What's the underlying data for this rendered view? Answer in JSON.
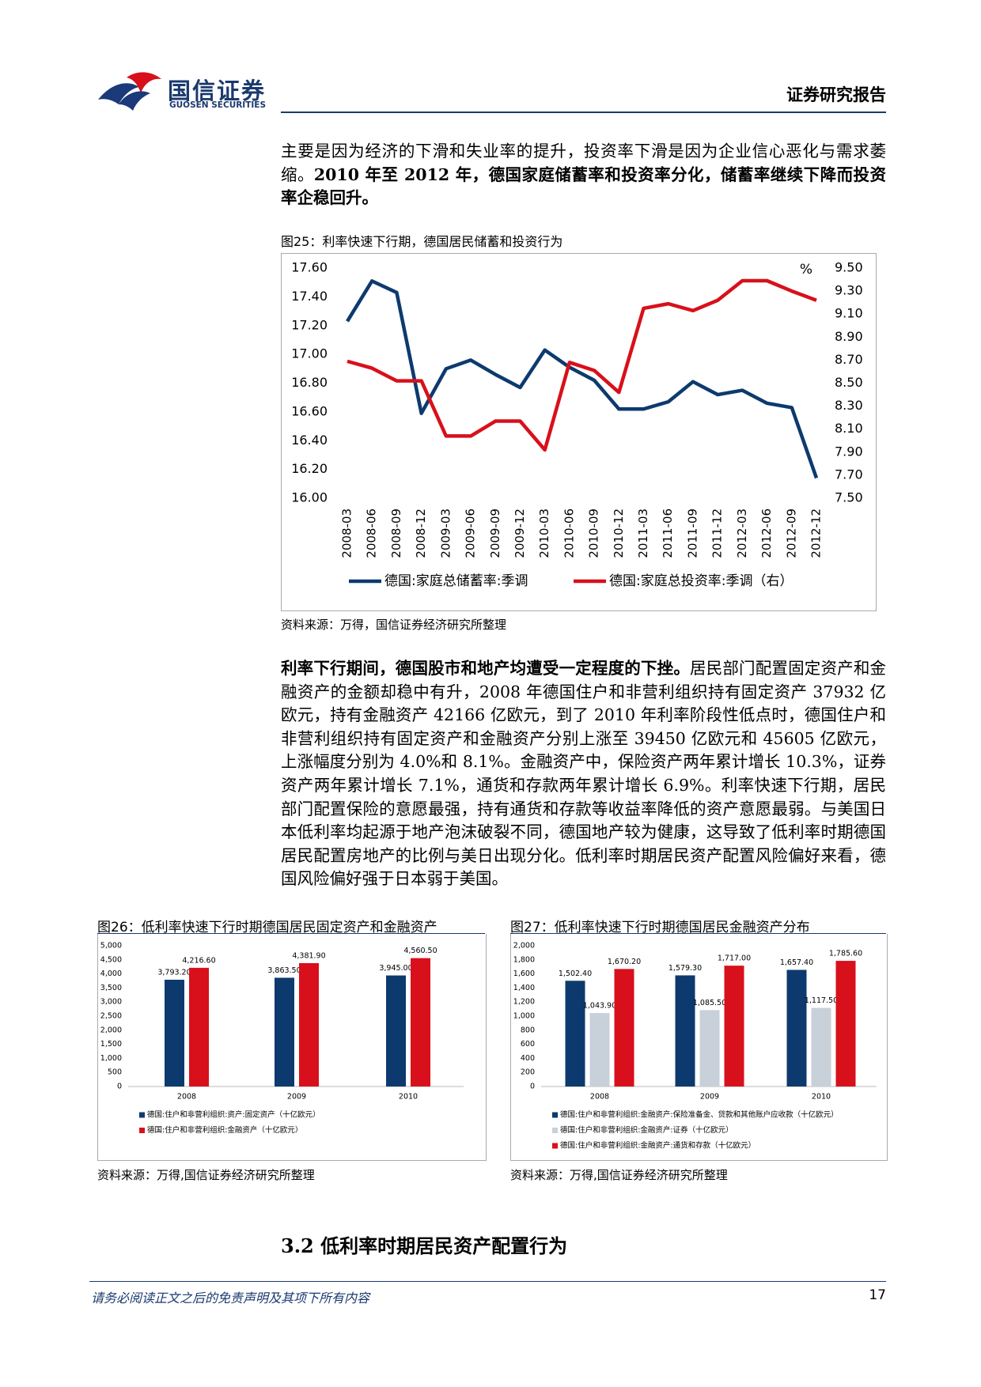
{
  "header": {
    "logo_cn": "国信证券",
    "logo_en": "GUOSEN SECURITIES",
    "report_type": "证券研究报告"
  },
  "paragraphs": [
    {
      "runs": [
        {
          "text": "主要是因为经济的下滑和失业率的提升，投资率下滑是因为企业信心恶化与需求萎缩。",
          "bold": false
        },
        {
          "text": "2010 年至 2012 年，德国家庭储蓄率和投资率分化，储蓄率继续下降而投资率企稳回升。",
          "bold": true
        }
      ]
    },
    {
      "runs": [
        {
          "text": "利率下行期间，德国股市和地产均遭受一定程度的下挫。",
          "bold": true
        },
        {
          "text": "居民部门配置固定资产和金融资产的金额却稳中有升，2008 年德国住户和非营利组织持有固定资产 37932 亿欧元，持有金融资产 42166 亿欧元，到了 2010 年利率阶段性低点时，德国住户和非营利组织持有固定资产和金融资产分别上涨至 39450 亿欧元和 45605 亿欧元，上涨幅度分别为 4.0%和 8.1%。金融资产中，保险资产两年累计增长 10.3%，证券资产两年累计增长 7.1%，通货和存款两年累计增长 6.9%。利率快速下行期，居民部门配置保险的意愿最强，持有通货和存款等收益率降低的资产意愿最弱。与美国日本低利率均起源于地产泡沫破裂不同，德国地产较为健康，这导致了低利率时期德国居民配置房地产的比例与美日出现分化。低利率时期居民资产配置风险偏好来看，德国风险偏好强于日本弱于美国。",
          "bold": false
        }
      ]
    }
  ],
  "chart_data": [
    {
      "type": "line",
      "title": "图25：利率快速下行期，德国居民储蓄和投资行为",
      "source": "资料来源：万得，国信证券经济研究所整理",
      "unit_label": "%",
      "categories": [
        "2008-03",
        "2008-06",
        "2008-09",
        "2008-12",
        "2009-03",
        "2009-06",
        "2009-09",
        "2009-12",
        "2010-03",
        "2010-06",
        "2010-09",
        "2010-12",
        "2011-03",
        "2011-06",
        "2011-09",
        "2011-12",
        "2012-03",
        "2012-06",
        "2012-09",
        "2012-12"
      ],
      "series": [
        {
          "name": "德国:家庭总储蓄率:季调",
          "color": "#0d3a6e",
          "values": [
            17.23,
            17.51,
            17.43,
            16.59,
            16.9,
            16.96,
            16.86,
            16.77,
            17.03,
            16.91,
            16.82,
            16.62,
            16.62,
            16.67,
            16.81,
            16.72,
            16.75,
            16.66,
            16.63,
            16.14
          ]
        },
        {
          "name": "德国:家庭总投资率:季调（右）",
          "color": "#d8101b",
          "axis": "y2",
          "values": [
            8.69,
            8.63,
            8.52,
            8.52,
            8.04,
            8.04,
            8.17,
            8.17,
            7.92,
            8.68,
            8.61,
            8.42,
            9.15,
            9.19,
            9.13,
            9.22,
            9.39,
            9.39,
            9.3,
            9.22
          ]
        }
      ],
      "ylim": [
        16,
        17.6
      ],
      "yticks": [
        {
          "value": 16,
          "label": "16.00"
        },
        {
          "value": 16.2,
          "label": "16.20"
        },
        {
          "value": 16.4,
          "label": "16.40"
        },
        {
          "value": 16.6,
          "label": "16.60"
        },
        {
          "value": 16.8,
          "label": "16.80"
        },
        {
          "value": 17,
          "label": "17.00"
        },
        {
          "value": 17.2,
          "label": "17.20"
        },
        {
          "value": 17.4,
          "label": "17.40"
        },
        {
          "value": 17.6,
          "label": "17.60"
        }
      ],
      "y2lim": [
        7.5,
        9.5
      ],
      "y2ticks": [
        {
          "value": 7.5,
          "label": "7.50"
        },
        {
          "value": 7.7,
          "label": "7.70"
        },
        {
          "value": 7.9,
          "label": "7.90"
        },
        {
          "value": 8.1,
          "label": "8.10"
        },
        {
          "value": 8.3,
          "label": "8.30"
        },
        {
          "value": 8.5,
          "label": "8.50"
        },
        {
          "value": 8.7,
          "label": "8.70"
        },
        {
          "value": 8.9,
          "label": "8.90"
        },
        {
          "value": 9.1,
          "label": "9.10"
        },
        {
          "value": 9.3,
          "label": "9.30"
        },
        {
          "value": 9.5,
          "label": "9.50"
        }
      ],
      "grid": false
    },
    {
      "type": "bar",
      "title": "图26：低利率快速下行时期德国居民固定资产和金融资产",
      "source": "资料来源：万得,国信证券经济研究所整理",
      "categories": [
        "2008",
        "2009",
        "2010"
      ],
      "series": [
        {
          "name": "德国:住户和非营利组织:资产:固定资产（十亿欧元）",
          "color": "#0d3a6e",
          "values": [
            3793.2,
            3863.5,
            3945.0
          ],
          "value_labels": [
            "3,793.20",
            "3,863.50",
            "3,945.00"
          ]
        },
        {
          "name": "德国:住户和非营利组织:金融资产（十亿欧元）",
          "color": "#d8101b",
          "values": [
            4216.6,
            4381.9,
            4560.5
          ],
          "value_labels": [
            "4,216.60",
            "4,381.90",
            "4,560.50"
          ]
        }
      ],
      "ylim": [
        0,
        5000
      ],
      "yticks": [
        0,
        500,
        {
          "value": 1000,
          "label": "1,000"
        },
        {
          "value": 1500,
          "label": "1,500"
        },
        {
          "value": 2000,
          "label": "2,000"
        },
        {
          "value": 2500,
          "label": "2,500"
        },
        {
          "value": 3000,
          "label": "3,000"
        },
        {
          "value": 3500,
          "label": "3,500"
        },
        {
          "value": 4000,
          "label": "4,000"
        },
        {
          "value": 4500,
          "label": "4,500"
        },
        {
          "value": 5000,
          "label": "5,000"
        }
      ],
      "grid": false
    },
    {
      "type": "bar",
      "title": "图27：低利率快速下行时期德国居民金融资产分布",
      "source": "资料来源：万得,国信证券经济研究所整理",
      "categories": [
        "2008",
        "2009",
        "2010"
      ],
      "series": [
        {
          "name": "德国:住户和非营利组织:金融资产:保险准备金、贷款和其他账户应收款（十亿欧元）",
          "color": "#0d3a6e",
          "values": [
            1502.4,
            1579.3,
            1657.4
          ],
          "value_labels": [
            "1,502.40",
            "1,579.30",
            "1,657.40"
          ]
        },
        {
          "name": "德国:住户和非营利组织:金融资产:证券（十亿欧元）",
          "color": "#c8d0da",
          "values": [
            1043.9,
            1085.5,
            1117.5
          ],
          "value_labels": [
            "1,043.90",
            "1,085.50",
            "1,117.50"
          ]
        },
        {
          "name": "德国:住户和非营利组织:金融资产:通货和存款（十亿欧元）",
          "color": "#d8101b",
          "values": [
            1670.2,
            1717.0,
            1785.6
          ],
          "value_labels": [
            "1,670.20",
            "1,717.00",
            "1,785.60"
          ]
        }
      ],
      "ylim": [
        0,
        2000
      ],
      "yticks": [
        0,
        200,
        400,
        600,
        800,
        {
          "value": 1000,
          "label": "1,000"
        },
        {
          "value": 1200,
          "label": "1,200"
        },
        {
          "value": 1400,
          "label": "1,400"
        },
        {
          "value": 1600,
          "label": "1,600"
        },
        {
          "value": 1800,
          "label": "1,800"
        },
        {
          "value": 2000,
          "label": "2,000"
        }
      ],
      "grid": false
    }
  ],
  "section_heading": "3.2 低利率时期居民资产配置行为",
  "footer": {
    "disclaimer": "请务必阅读正文之后的免责声明及其项下所有内容",
    "page": "17"
  }
}
